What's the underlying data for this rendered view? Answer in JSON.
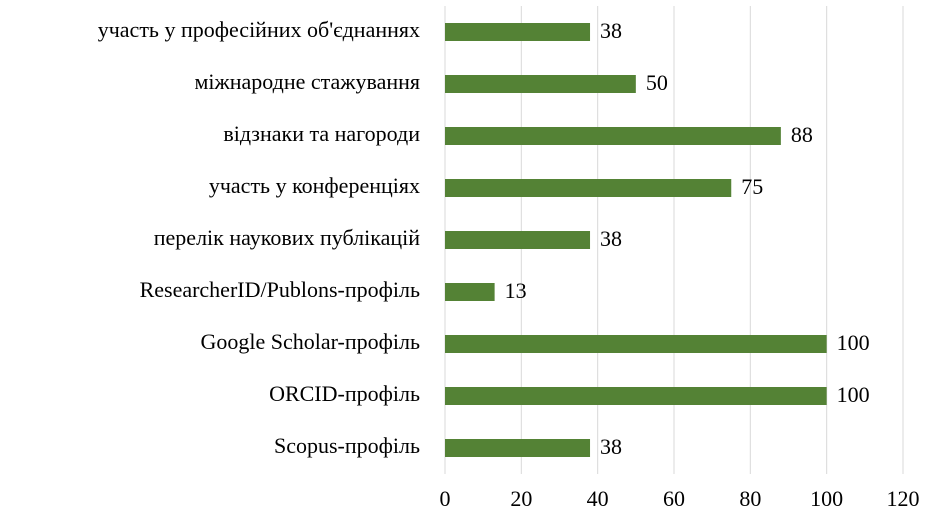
{
  "chart_data": {
    "type": "bar",
    "orientation": "horizontal",
    "categories": [
      "участь у професійних об'єднаннях",
      "міжнародне стажування",
      "відзнаки та нагороди",
      "участь у конференціях",
      "перелік наукових публікацій",
      "ResearcherID/Publons-профіль",
      "Google Scholar-профіль",
      "ORCID-профіль",
      "Scopus-профіль"
    ],
    "values": [
      38,
      50,
      88,
      75,
      38,
      13,
      100,
      100,
      38
    ],
    "color": "#548235",
    "xlim": [
      0,
      120
    ],
    "xticks": [
      0,
      20,
      40,
      60,
      80,
      100,
      120
    ],
    "grid": true
  }
}
